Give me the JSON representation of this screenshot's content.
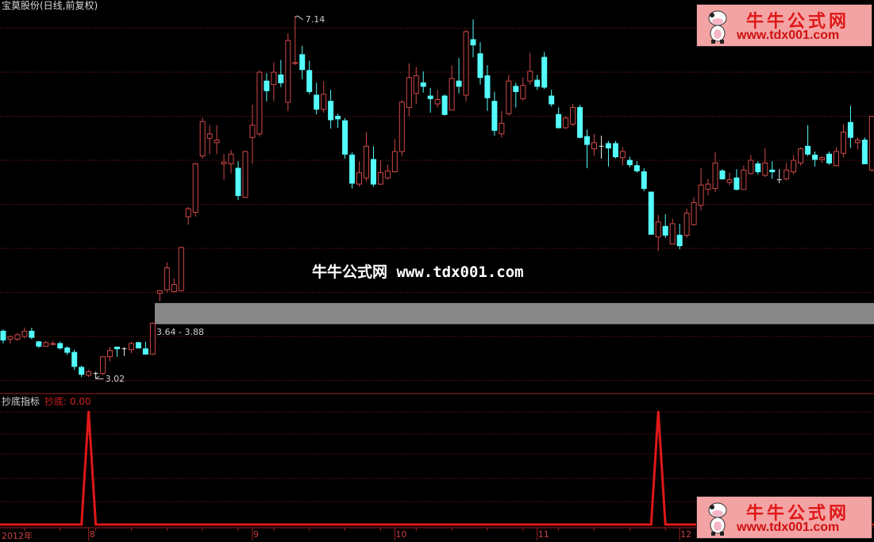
{
  "header": {
    "title": "宝莫股份(日线,前复权)"
  },
  "indicator": {
    "name": "抄底指标",
    "value_label": "抄底: 0.00"
  },
  "watermark": "牛牛公式网 www.tdx001.com",
  "logo": {
    "cn": "牛牛公式网",
    "url": "www.tdx001.com"
  },
  "annotations": {
    "high": "7.14",
    "low": "3.02",
    "zone": "3.64 - 3.88"
  },
  "colors": {
    "up": "#d04848",
    "down": "#54fcfc",
    "grid": "#7a1c1c",
    "zone": "#888888",
    "signal": "#e01818"
  },
  "chart_data": {
    "type": "candlestick",
    "ylim": [
      3.0,
      7.14
    ],
    "grid_levels": [
      7.0,
      6.5,
      6.0,
      5.5,
      5.0,
      4.5,
      4.0,
      3.5,
      3.0
    ],
    "zone": [
      3.64,
      3.88
    ],
    "x_labels": [
      {
        "bar": 0,
        "text": "2012年"
      },
      {
        "bar": 12,
        "text": "8"
      },
      {
        "bar": 35,
        "text": "9"
      },
      {
        "bar": 55,
        "text": "10"
      },
      {
        "bar": 75,
        "text": "11"
      },
      {
        "bar": 95,
        "text": "12"
      }
    ],
    "ohlc": [
      [
        3.56,
        3.58,
        3.42,
        3.46
      ],
      [
        3.47,
        3.51,
        3.42,
        3.5
      ],
      [
        3.47,
        3.54,
        3.45,
        3.52
      ],
      [
        3.5,
        3.6,
        3.48,
        3.56
      ],
      [
        3.56,
        3.6,
        3.47,
        3.49
      ],
      [
        3.44,
        3.45,
        3.37,
        3.39
      ],
      [
        3.39,
        3.45,
        3.38,
        3.43
      ],
      [
        3.41,
        3.45,
        3.4,
        3.42
      ],
      [
        3.42,
        3.44,
        3.35,
        3.37
      ],
      [
        3.37,
        3.39,
        3.29,
        3.32
      ],
      [
        3.32,
        3.35,
        3.12,
        3.16
      ],
      [
        3.15,
        3.17,
        3.04,
        3.07
      ],
      [
        3.06,
        3.12,
        3.04,
        3.1
      ],
      [
        3.08,
        3.1,
        3.02,
        3.08
      ],
      [
        3.08,
        3.28,
        3.06,
        3.27
      ],
      [
        3.27,
        3.38,
        3.22,
        3.34
      ],
      [
        3.38,
        3.38,
        3.27,
        3.36
      ],
      [
        3.36,
        3.38,
        3.28,
        3.36
      ],
      [
        3.35,
        3.44,
        3.31,
        3.42
      ],
      [
        3.43,
        3.44,
        3.37,
        3.37
      ],
      [
        3.36,
        3.44,
        3.3,
        3.3
      ],
      [
        3.3,
        3.66,
        3.29,
        3.65
      ],
      [
        3.99,
        4.03,
        3.9,
        4.02
      ],
      [
        4.03,
        4.34,
        4.0,
        4.28
      ],
      [
        4.01,
        4.16,
        4.0,
        4.09
      ],
      [
        4.02,
        4.52,
        4.01,
        4.51
      ],
      [
        4.86,
        4.97,
        4.77,
        4.95
      ],
      [
        4.91,
        5.47,
        4.86,
        5.46
      ],
      [
        5.55,
        5.98,
        5.52,
        5.94
      ],
      [
        5.75,
        5.9,
        5.57,
        5.8
      ],
      [
        5.7,
        5.9,
        5.57,
        5.73
      ],
      [
        5.46,
        5.57,
        5.28,
        5.48
      ],
      [
        5.46,
        5.62,
        5.35,
        5.57
      ],
      [
        5.41,
        5.49,
        5.05,
        5.1
      ],
      [
        5.08,
        5.61,
        5.07,
        5.6
      ],
      [
        5.76,
        6.13,
        5.46,
        5.9
      ],
      [
        5.8,
        6.52,
        5.77,
        6.5
      ],
      [
        6.4,
        6.49,
        6.17,
        6.29
      ],
      [
        6.36,
        6.61,
        6.17,
        6.5
      ],
      [
        6.47,
        6.64,
        6.33,
        6.38
      ],
      [
        6.16,
        6.94,
        6.06,
        6.86
      ],
      [
        6.6,
        7.14,
        6.58,
        6.61
      ],
      [
        6.7,
        6.8,
        6.42,
        6.53
      ],
      [
        6.52,
        6.63,
        6.25,
        6.28
      ],
      [
        6.24,
        6.38,
        6.02,
        6.08
      ],
      [
        6.08,
        6.4,
        6.04,
        6.25
      ],
      [
        6.17,
        6.3,
        5.86,
        5.96
      ],
      [
        6.0,
        6.03,
        5.87,
        5.97
      ],
      [
        5.95,
        5.98,
        5.52,
        5.57
      ],
      [
        5.56,
        5.59,
        5.18,
        5.24
      ],
      [
        5.23,
        5.49,
        5.2,
        5.36
      ],
      [
        5.3,
        5.82,
        5.26,
        5.66
      ],
      [
        5.51,
        5.66,
        5.2,
        5.23
      ],
      [
        5.23,
        5.5,
        5.22,
        5.36
      ],
      [
        5.3,
        5.45,
        5.28,
        5.38
      ],
      [
        5.37,
        5.74,
        5.36,
        5.6
      ],
      [
        5.6,
        6.18,
        5.55,
        6.16
      ],
      [
        6.1,
        6.6,
        6.0,
        6.44
      ],
      [
        6.26,
        6.56,
        6.14,
        6.46
      ],
      [
        6.38,
        6.51,
        6.27,
        6.34
      ],
      [
        6.23,
        6.32,
        6.04,
        6.2
      ],
      [
        6.14,
        6.3,
        6.1,
        6.19
      ],
      [
        6.23,
        6.25,
        6.01,
        6.02
      ],
      [
        6.07,
        6.58,
        6.07,
        6.43
      ],
      [
        6.4,
        6.66,
        6.26,
        6.34
      ],
      [
        6.24,
        6.98,
        6.17,
        6.96
      ],
      [
        6.87,
        7.1,
        6.67,
        6.81
      ],
      [
        6.71,
        6.84,
        6.36,
        6.44
      ],
      [
        6.46,
        6.58,
        6.06,
        6.21
      ],
      [
        6.17,
        6.28,
        5.78,
        5.84
      ],
      [
        5.8,
        6.06,
        5.76,
        5.92
      ],
      [
        6.03,
        6.47,
        6.01,
        6.4
      ],
      [
        6.34,
        6.38,
        6.1,
        6.28
      ],
      [
        6.2,
        6.44,
        6.18,
        6.35
      ],
      [
        6.4,
        6.72,
        6.36,
        6.51
      ],
      [
        6.41,
        6.47,
        6.3,
        6.34
      ],
      [
        6.67,
        6.73,
        6.31,
        6.33
      ],
      [
        6.23,
        6.3,
        6.11,
        6.14
      ],
      [
        6.02,
        6.1,
        5.86,
        5.87
      ],
      [
        5.87,
        6.0,
        5.86,
        5.98
      ],
      [
        5.91,
        6.14,
        5.89,
        6.1
      ],
      [
        6.1,
        6.13,
        5.75,
        5.76
      ],
      [
        5.77,
        5.85,
        5.41,
        5.68
      ],
      [
        5.63,
        5.8,
        5.55,
        5.7
      ],
      [
        5.66,
        5.78,
        5.52,
        5.66
      ],
      [
        5.69,
        5.72,
        5.43,
        5.64
      ],
      [
        5.69,
        5.72,
        5.52,
        5.54
      ],
      [
        5.53,
        5.65,
        5.44,
        5.6
      ],
      [
        5.5,
        5.54,
        5.42,
        5.45
      ],
      [
        5.44,
        5.49,
        5.36,
        5.38
      ],
      [
        5.37,
        5.41,
        5.15,
        5.18
      ],
      [
        5.14,
        5.14,
        4.66,
        4.66
      ],
      [
        4.63,
        4.88,
        4.47,
        4.8
      ],
      [
        4.75,
        4.89,
        4.62,
        4.65
      ],
      [
        4.55,
        4.84,
        4.55,
        4.78
      ],
      [
        4.65,
        4.78,
        4.49,
        4.53
      ],
      [
        4.65,
        4.95,
        4.62,
        4.9
      ],
      [
        4.77,
        5.08,
        4.76,
        5.02
      ],
      [
        4.99,
        5.41,
        4.93,
        5.22
      ],
      [
        5.17,
        5.29,
        5.1,
        5.23
      ],
      [
        5.18,
        5.59,
        5.14,
        5.47
      ],
      [
        5.38,
        5.4,
        5.28,
        5.29
      ],
      [
        5.25,
        5.36,
        5.22,
        5.28
      ],
      [
        5.3,
        5.4,
        5.16,
        5.17
      ],
      [
        5.17,
        5.44,
        5.17,
        5.39
      ],
      [
        5.35,
        5.56,
        5.34,
        5.5
      ],
      [
        5.46,
        5.49,
        5.34,
        5.37
      ],
      [
        5.33,
        5.64,
        5.31,
        5.47
      ],
      [
        5.39,
        5.49,
        5.29,
        5.37
      ],
      [
        5.28,
        5.4,
        5.24,
        5.28
      ],
      [
        5.29,
        5.47,
        5.27,
        5.39
      ],
      [
        5.37,
        5.56,
        5.34,
        5.5
      ],
      [
        5.47,
        5.65,
        5.44,
        5.63
      ],
      [
        5.66,
        5.9,
        5.55,
        5.57
      ],
      [
        5.56,
        5.6,
        5.43,
        5.51
      ],
      [
        5.51,
        5.55,
        5.47,
        5.53
      ],
      [
        5.57,
        5.6,
        5.45,
        5.47
      ],
      [
        5.44,
        5.65,
        5.43,
        5.6
      ],
      [
        5.58,
        5.91,
        5.53,
        5.82
      ],
      [
        5.93,
        6.12,
        5.64,
        5.76
      ],
      [
        5.7,
        5.76,
        5.62,
        5.73
      ],
      [
        5.73,
        5.76,
        5.46,
        5.46
      ],
      [
        5.39,
        6.0,
        5.37,
        6.0
      ]
    ],
    "indicator_signal_bars": [
      12,
      92
    ],
    "indicator_ylim": [
      0,
      1
    ]
  }
}
